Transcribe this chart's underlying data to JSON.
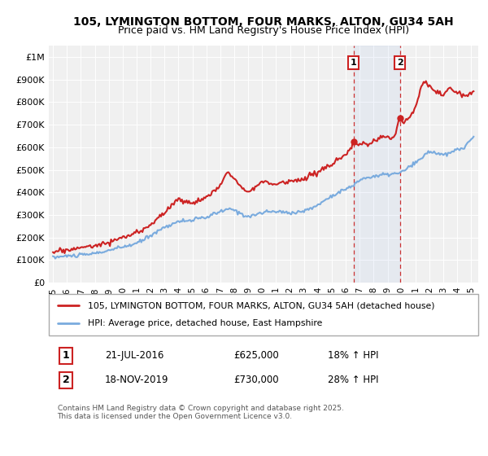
{
  "title_line1": "105, LYMINGTON BOTTOM, FOUR MARKS, ALTON, GU34 5AH",
  "title_line2": "Price paid vs. HM Land Registry's House Price Index (HPI)",
  "ylabel_ticks": [
    "£0",
    "£100K",
    "£200K",
    "£300K",
    "£400K",
    "£500K",
    "£600K",
    "£700K",
    "£800K",
    "£900K",
    "£1M"
  ],
  "ytick_values": [
    0,
    100000,
    200000,
    300000,
    400000,
    500000,
    600000,
    700000,
    800000,
    900000,
    1000000
  ],
  "xlim": [
    1994.7,
    2025.5
  ],
  "ylim": [
    0,
    1050000
  ],
  "legend_line1": "105, LYMINGTON BOTTOM, FOUR MARKS, ALTON, GU34 5AH (detached house)",
  "legend_line2": "HPI: Average price, detached house, East Hampshire",
  "line1_color": "#cc2222",
  "line2_color": "#7aabde",
  "marker1_date": 2016.55,
  "marker2_date": 2019.88,
  "marker1_price": 625000,
  "marker2_price": 730000,
  "plot_bg_color": "#f0f0f0",
  "background_color": "#ffffff",
  "grid_color": "#ffffff",
  "footer": "Contains HM Land Registry data © Crown copyright and database right 2025.\nThis data is licensed under the Open Government Licence v3.0."
}
